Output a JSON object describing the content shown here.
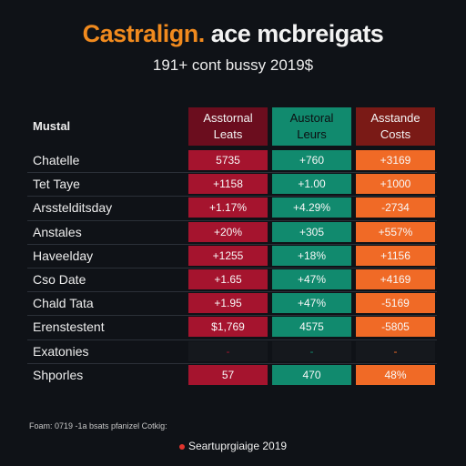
{
  "header": {
    "title_accent": "Castralign.",
    "title_rest": "ace mcbreigats",
    "subtitle": "191+ cont bussy 2019$"
  },
  "chart_data": {
    "type": "table",
    "corner_label": "Mustal",
    "columns": [
      {
        "name": "Asstornal\nLeats",
        "color": "#a5142e"
      },
      {
        "name": "Austoral\nLeurs",
        "color": "#118a6e"
      },
      {
        "name": "Asstande\nCosts",
        "color": "#f06a26"
      }
    ],
    "rows": [
      {
        "label": "Chatelle",
        "values": [
          "5735",
          "+760",
          "+3169"
        ]
      },
      {
        "label": "Tet Taye",
        "values": [
          "+1158",
          "+1.00",
          "+1000"
        ]
      },
      {
        "label": "Arsstelditsday",
        "values": [
          "+1.17%",
          "+4.29%",
          "-2734"
        ]
      },
      {
        "label": "Anstales",
        "values": [
          "+20%",
          "+305",
          "+557%"
        ]
      },
      {
        "label": "Haveelday",
        "values": [
          "+1255",
          "+18%",
          "+1156"
        ]
      },
      {
        "label": "Cso Date",
        "values": [
          "+1.65",
          "+47%",
          "+4169"
        ]
      },
      {
        "label": "Chald Tata",
        "values": [
          "+1.95",
          "+47%",
          "-5169"
        ]
      },
      {
        "label": "Erenstestent",
        "values": [
          "$1,769",
          "4575",
          "-5805"
        ]
      },
      {
        "label": "Exatonies",
        "values": [
          "-",
          "-",
          "-"
        ]
      },
      {
        "label": "Shporles",
        "values": [
          "57",
          "470",
          "48%"
        ]
      }
    ]
  },
  "footer": {
    "footnote": "Foam: 0719 -1a  bsats pfanizel Cotkig:",
    "source": "Seartuprgiaige 2019"
  }
}
